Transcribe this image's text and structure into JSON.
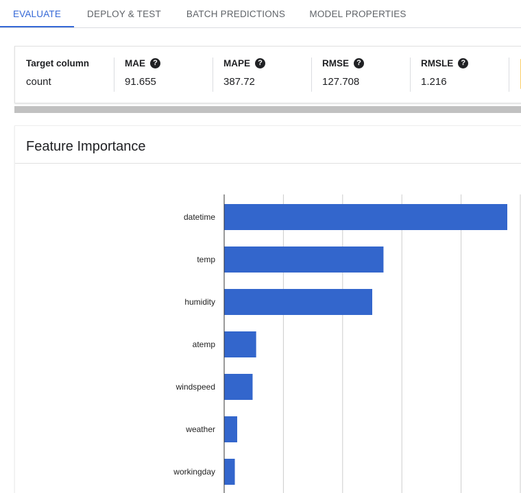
{
  "tabs": [
    {
      "label": "EVALUATE",
      "active": true
    },
    {
      "label": "DEPLOY & TEST",
      "active": false
    },
    {
      "label": "BATCH PREDICTIONS",
      "active": false
    },
    {
      "label": "MODEL PROPERTIES",
      "active": false
    }
  ],
  "metrics": {
    "target": {
      "label": "Target column",
      "value": "count"
    },
    "mae": {
      "label": "MAE",
      "value": "91.655"
    },
    "mape": {
      "label": "MAPE",
      "value": "387.72"
    },
    "rmse": {
      "label": "RMSE",
      "value": "127.708"
    },
    "rmsle": {
      "label": "RMSLE",
      "value": "1.216"
    }
  },
  "help_icon": {
    "glyph": "?",
    "icon": "help-circle-icon"
  },
  "feature_importance": {
    "title": "Feature Importance"
  },
  "colors": {
    "accent": "#3367d6",
    "bar": "#3366cc"
  },
  "chart_data": {
    "type": "bar",
    "orientation": "horizontal",
    "categories": [
      "datetime",
      "temp",
      "humidity",
      "atemp",
      "windspeed",
      "weather",
      "workingday"
    ],
    "values": [
      0.478,
      0.269,
      0.25,
      0.054,
      0.048,
      0.022,
      0.018
    ],
    "xlim": [
      0,
      0.5
    ],
    "grid": true
  }
}
